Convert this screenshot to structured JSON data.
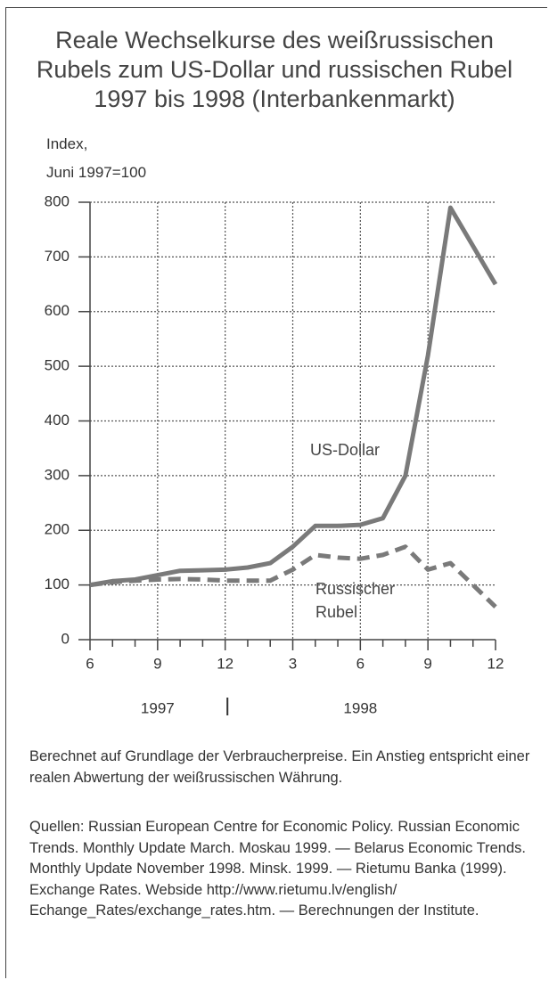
{
  "chart_data": {
    "type": "line",
    "title": [
      "Reale Wechselkurse des weißrussischen",
      "Rubels zum US-Dollar und russischen Rubel",
      "1997 bis 1998 (Interbankenmarkt)"
    ],
    "y_label": [
      "Index,",
      "Juni 1997=100"
    ],
    "categories": [
      "6",
      null,
      null,
      "9",
      null,
      null,
      "12",
      null,
      null,
      "3",
      null,
      null,
      "6",
      null,
      null,
      "9",
      null,
      null,
      "12"
    ],
    "x_group_labels": [
      "1997",
      "1998"
    ],
    "series": [
      {
        "name": "US-Dollar",
        "color": "#7a7a7a",
        "dashed": false,
        "values": [
          100,
          107,
          110,
          118,
          126,
          127,
          128,
          132,
          140,
          170,
          208,
          208,
          210,
          222,
          300,
          520,
          790,
          720,
          650
        ]
      },
      {
        "name": "Russischer Rubel",
        "color": "#7a7a7a",
        "dashed": true,
        "values": [
          100,
          105,
          108,
          110,
          111,
          110,
          108,
          108,
          108,
          128,
          155,
          150,
          148,
          155,
          170,
          128,
          140,
          100,
          60
        ]
      }
    ],
    "ylim": [
      0,
      800
    ],
    "yticks": [
      0,
      100,
      200,
      300,
      400,
      500,
      600,
      700,
      800
    ],
    "grid": true,
    "note": "Berechnet auf Grundlage der Verbraucherpreise. Ein Anstieg entspricht einer realen Abwertung der weißrussischen Währung.",
    "sources": "Quellen: Russian European Centre for Economic Policy. Russian Economic Trends. Monthly Update March. Moskau 1999. — Belarus Economic Trends. Monthly Update November 1998. Minsk. 1999. — Rietumu Banka (1999). Exchange Rates. Webside http://www.rietumu.lv/english/ Echange_Rates/exchange_rates.htm. — Berechnungen der Institute."
  }
}
